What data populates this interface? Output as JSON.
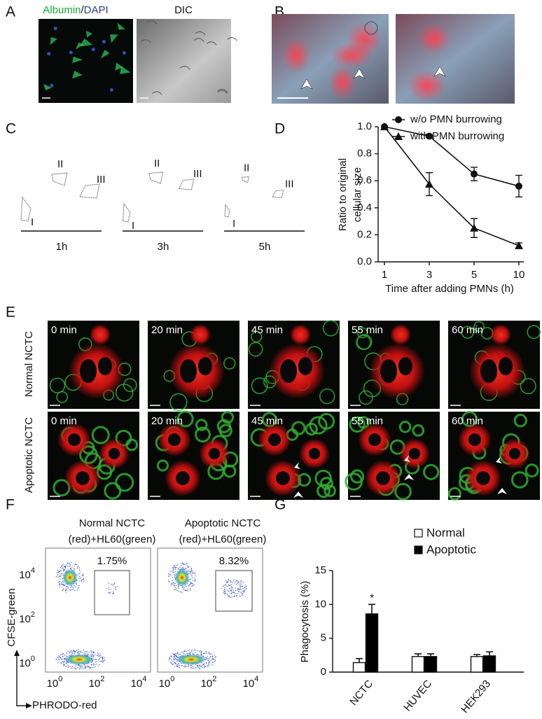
{
  "panel_labels": [
    "A",
    "B",
    "C",
    "D",
    "E",
    "F",
    "G"
  ],
  "panel_a": {
    "stain_label": [
      "Albumin",
      "/",
      "DAPI"
    ],
    "dic_label": "DIC"
  },
  "panel_c": {
    "cell_labels": [
      "I",
      "II",
      "III"
    ],
    "times": [
      "1h",
      "3h",
      "5h"
    ]
  },
  "panel_e": {
    "times": [
      "0 min",
      "20 min",
      "45 min",
      "55 min",
      "60 min"
    ],
    "rows": [
      "Normal NCTC",
      "Apoptotic NCTC"
    ]
  },
  "panel_f": {
    "plots": [
      {
        "title": [
          "Normal NCTC",
          "(red)+HL60(green)"
        ],
        "gate_percent": "1.75%"
      },
      {
        "title": [
          "Apoptotic NCTC",
          "(red)+HL60(green)"
        ],
        "gate_percent": "8.32%"
      }
    ],
    "y_label": "CFSE-green",
    "x_label": "PHRODO-red",
    "tick_base": "10",
    "tick_exponents": [
      "0",
      "2",
      "4"
    ]
  },
  "chart_data": [
    {
      "type": "line",
      "categories": [
        "1",
        "3",
        "5",
        "10"
      ],
      "xlabel": "Time after adding PMNs (h)",
      "ylabel": [
        "Ratio to original",
        "cellular size"
      ],
      "ylim": [
        0,
        1
      ],
      "yticks": [
        {
          "value": 0,
          "label": "0.0"
        },
        0.2,
        0.4,
        0.6,
        0.8,
        {
          "value": 1,
          "label": "1.0"
        }
      ],
      "series": [
        {
          "name": "w/o PMN burrowing",
          "marker": "circle",
          "color": "#111111",
          "values": [
            1.0,
            0.93,
            0.65,
            0.56
          ],
          "errors": [
            0,
            0.01,
            0.05,
            0.08
          ]
        },
        {
          "name": "with PMN burrowing",
          "marker": "triangle",
          "color": "#111111",
          "values": [
            1.0,
            0.575,
            0.25,
            0.12
          ],
          "errors": [
            0,
            0.085,
            0.07,
            0.02
          ]
        }
      ]
    },
    {
      "type": "bar",
      "categories": [
        "NCTC",
        "HUVEC",
        "HEK293"
      ],
      "ylabel": "Phagocytosis (%)",
      "ylim": [
        0,
        15
      ],
      "yticks": [
        0,
        5,
        10,
        15
      ],
      "series": [
        {
          "name": "Normal",
          "color": "#ffffff",
          "values": [
            1.4,
            2.3,
            2.3
          ],
          "errors": [
            0.6,
            0.4,
            0.3
          ]
        },
        {
          "name": "Apoptotic",
          "color": "#000000",
          "values": [
            8.6,
            2.3,
            2.4
          ],
          "errors": [
            1.4,
            0.4,
            0.6
          ]
        }
      ],
      "annotations": [
        {
          "text": "*",
          "category": 0,
          "series": 1
        }
      ]
    }
  ]
}
